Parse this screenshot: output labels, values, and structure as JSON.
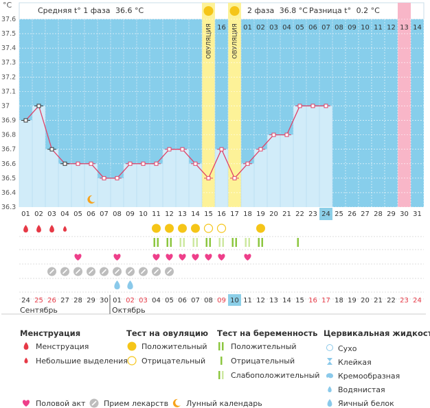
{
  "unit_label": "°C",
  "header": {
    "phase1_label": "Средняя t° 1 фаза",
    "phase1_value": "36.6 °C",
    "phase2_label": "2 фаза",
    "phase2_value": "36.8 °C",
    "diff_label": "Разница t°",
    "diff_value": "0.2 °C"
  },
  "ovulation_label": "ОВУЛЯЦИЯ",
  "cycle_days": [
    "01",
    "02",
    "03",
    "04",
    "05",
    "06",
    "07",
    "08",
    "09",
    "10",
    "11",
    "12",
    "13",
    "14",
    "15",
    "16",
    "17",
    "01",
    "02",
    "03",
    "04",
    "05",
    "06",
    "07",
    "08",
    "09",
    "10",
    "11",
    "12",
    "13",
    "14"
  ],
  "dates": [
    "24",
    "25",
    "26",
    "27",
    "28",
    "29",
    "30",
    "01",
    "02",
    "03",
    "04",
    "05",
    "06",
    "07",
    "08",
    "09",
    "10",
    "11",
    "12",
    "13",
    "14",
    "15",
    "16",
    "17",
    "18",
    "19",
    "20",
    "21",
    "22",
    "23",
    "24"
  ],
  "bottom_days": [
    "01",
    "02",
    "03",
    "04",
    "05",
    "06",
    "07",
    "08",
    "09",
    "10",
    "11",
    "12",
    "13",
    "14",
    "15",
    "16",
    "17",
    "18",
    "19",
    "20",
    "21",
    "22",
    "23",
    "24",
    "25",
    "26",
    "27",
    "28",
    "29",
    "30",
    "31"
  ],
  "months": [
    "Сентябрь",
    "Октябрь"
  ],
  "chart_data": {
    "type": "line",
    "title": "",
    "ylabel": "°C",
    "ylim": [
      36.3,
      37.6
    ],
    "yticks": [
      "37.6",
      "37.5",
      "37.4",
      "37.3",
      "37.2",
      "37.1",
      "37",
      "36.9",
      "36.8",
      "36.7",
      "36.6",
      "36.5",
      "36.4",
      "36.3"
    ],
    "x": [
      "01",
      "02",
      "03",
      "04",
      "05",
      "06",
      "07",
      "08",
      "09",
      "10",
      "11",
      "12",
      "13",
      "14",
      "15",
      "16",
      "17",
      "18",
      "19",
      "20",
      "21",
      "22",
      "23",
      "24"
    ],
    "series": [
      {
        "values": [
          36.9,
          37.0,
          36.7,
          36.6,
          36.6,
          36.6,
          36.5,
          36.5,
          36.6,
          36.6,
          36.6,
          36.7,
          36.7,
          36.6,
          36.5,
          36.7,
          36.5,
          36.6,
          36.7,
          36.8,
          36.8,
          37.0,
          37.0,
          37.0
        ]
      }
    ],
    "ovulation_days": [
      "15",
      "17"
    ],
    "today": "24",
    "highlight_day": "30",
    "weekend_dates": [
      "25",
      "26",
      "02",
      "03",
      "09",
      "10",
      "16",
      "17",
      "23",
      "24"
    ]
  },
  "markers": {
    "menstruation": [
      1,
      2,
      3,
      4
    ],
    "menstruation_small": [
      4
    ],
    "ovulation_positive": [
      11,
      12,
      13,
      14,
      19
    ],
    "ovulation_negative": [
      15,
      16
    ],
    "pregnancy_positive": [
      11,
      12,
      13,
      14,
      15,
      16,
      17,
      18,
      19,
      22
    ],
    "sex": [
      5,
      8,
      11,
      12,
      13,
      14,
      15,
      16,
      18
    ],
    "medicine": [
      3,
      4,
      5,
      6,
      7,
      8,
      9,
      10,
      11,
      12
    ],
    "moon": [
      6
    ],
    "cervical_egg_white": [
      8,
      9
    ]
  },
  "legend": {
    "menstruation_title": "Менструация",
    "menstruation": "Менструация",
    "small_discharge": "Небольшие выделения",
    "ovulation_test_title": "Тест на овуляцию",
    "positive": "Положительный",
    "negative": "Отрицательный",
    "pregnancy_test_title": "Тест на беременность",
    "preg_positive": "Положительный",
    "preg_negative": "Отрицательный",
    "preg_weak": "Слабоположительный",
    "cervical_title": "Цервикальная жидкость",
    "dry": "Сухо",
    "sticky": "Клейкая",
    "creamy": "Кремообразная",
    "watery": "Водянистая",
    "egg_white": "Яичный белок",
    "sex": "Половой акт",
    "medicine": "Прием лекарств",
    "moon": "Лунный календарь"
  },
  "colors": {
    "plot_bg": "#87ceeb",
    "phase1_fill": "#d1ecf9",
    "ovulation": "#fdf298",
    "highlight": "#f8b6c8",
    "line": "#e04066",
    "red": "#e63946",
    "yellow": "#f5c518",
    "green": "#8cc63f",
    "pink": "#ee3f8a",
    "gray": "#bdbdbd",
    "blue": "#8ac9ea",
    "weekend": "#e63946"
  }
}
